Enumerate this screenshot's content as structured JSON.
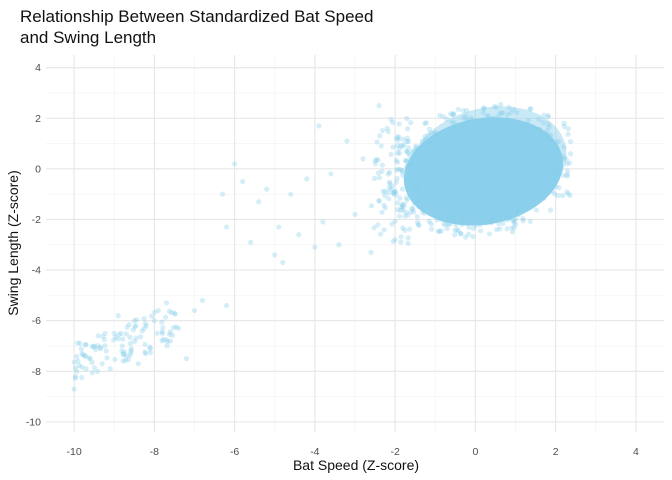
{
  "chart_data": {
    "type": "scatter",
    "title_lines": [
      "Relationship Between Standardized Bat Speed",
      "and Swing Length"
    ],
    "xlabel": "Bat Speed (Z-score)",
    "ylabel": "Swing Length (Z-score)",
    "xlim": [
      -10.7,
      4.7
    ],
    "ylim": [
      -10.4,
      4.5
    ],
    "x_ticks": [
      -10,
      -8,
      -6,
      -4,
      -2,
      0,
      2,
      4
    ],
    "y_ticks": [
      -10,
      -8,
      -6,
      -4,
      -2,
      0,
      2,
      4
    ],
    "x_tick_labels": [
      "-10",
      "-8",
      "-6",
      "-4",
      "-2",
      "0",
      "2",
      "4"
    ],
    "y_tick_labels": [
      "-10",
      "-8",
      "-6",
      "-4",
      "-2",
      "0",
      "2",
      "4"
    ],
    "grid": true,
    "legend": false,
    "marker_color": "#87CEEB",
    "marker_alpha": 0.35,
    "series": [
      {
        "points": [
          [
            -10.0,
            -8.7
          ],
          [
            -9.9,
            -7.6
          ],
          [
            -9.8,
            -7.3
          ],
          [
            -9.7,
            -7.9
          ],
          [
            -9.6,
            -7.5
          ],
          [
            -9.5,
            -7.0
          ],
          [
            -9.4,
            -6.6
          ],
          [
            -9.3,
            -7.7
          ],
          [
            -9.2,
            -7.2
          ],
          [
            -9.1,
            -7.9
          ],
          [
            -9.0,
            -6.5
          ],
          [
            -8.9,
            -5.8
          ],
          [
            -8.8,
            -7.0
          ],
          [
            -8.7,
            -7.4
          ],
          [
            -8.6,
            -6.9
          ],
          [
            -8.5,
            -6.0
          ],
          [
            -8.4,
            -7.7
          ],
          [
            -8.3,
            -6.4
          ],
          [
            -8.2,
            -6.2
          ],
          [
            -8.1,
            -7.1
          ],
          [
            -8.0,
            -6.0
          ],
          [
            -7.9,
            -5.6
          ],
          [
            -7.8,
            -6.5
          ],
          [
            -7.7,
            -5.3
          ],
          [
            -7.6,
            -6.8
          ],
          [
            -7.5,
            -5.7
          ],
          [
            -7.4,
            -6.3
          ],
          [
            -7.2,
            -7.5
          ],
          [
            -7.0,
            -5.6
          ],
          [
            -6.8,
            -5.2
          ],
          [
            -6.2,
            -5.4
          ],
          [
            -6.3,
            -1.0
          ],
          [
            -6.2,
            -2.3
          ],
          [
            -6.0,
            0.2
          ],
          [
            -5.8,
            -0.5
          ],
          [
            -5.6,
            -2.9
          ],
          [
            -5.4,
            -1.3
          ],
          [
            -5.2,
            -0.8
          ],
          [
            -5.0,
            -3.4
          ],
          [
            -4.9,
            -2.3
          ],
          [
            -4.8,
            -3.7
          ],
          [
            -4.6,
            -1.0
          ],
          [
            -4.4,
            -2.6
          ],
          [
            -4.2,
            -0.4
          ],
          [
            -4.0,
            -3.1
          ],
          [
            -3.9,
            1.7
          ],
          [
            -3.8,
            -2.1
          ],
          [
            -3.6,
            -0.2
          ],
          [
            -3.4,
            -3.0
          ],
          [
            -3.2,
            1.1
          ],
          [
            -3.0,
            -1.8
          ],
          [
            -2.8,
            0.4
          ],
          [
            -2.6,
            -3.3
          ],
          [
            -2.4,
            2.5
          ],
          [
            -2.3,
            -0.9
          ],
          [
            -2.2,
            1.6
          ],
          [
            -2.0,
            -2.8
          ],
          [
            -1.9,
            0.8
          ]
        ]
      }
    ]
  }
}
